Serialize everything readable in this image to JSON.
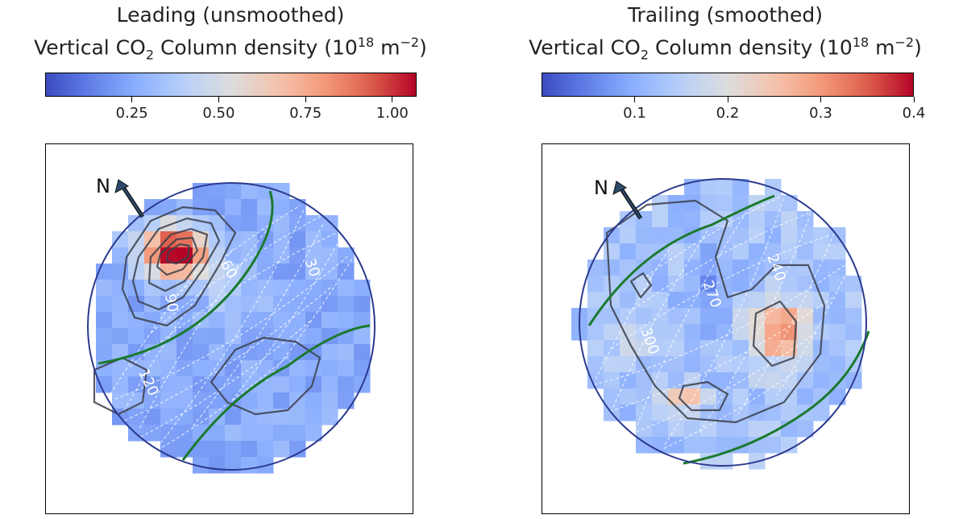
{
  "chart_data": [
    {
      "type": "heatmap",
      "title_line1": "Leading (unsmoothed)",
      "title_line2_pre": "Vertical CO",
      "title_line2_sub": "2",
      "title_line2_mid": " Column density (10",
      "title_line2_sup1": "18",
      "title_line2_unit": " m",
      "title_line2_sup2": "−2",
      "title_line2_end": ")",
      "colormap": "coolwarm",
      "colorbar_range": [
        0.0,
        1.07
      ],
      "colorbar_ticks": [
        0.25,
        0.5,
        0.75,
        1.0
      ],
      "colorbar_tick_labels": [
        "0.25",
        "0.50",
        "0.75",
        "1.00"
      ],
      "north_label": "N",
      "longitude_labels": [
        {
          "text": "30",
          "lon": 30
        },
        {
          "text": "60",
          "lon": 60
        },
        {
          "text": "90",
          "lon": 90
        },
        {
          "text": "120",
          "lon": 120
        }
      ],
      "contour_levels": [
        0.3,
        0.45,
        0.6,
        0.75,
        0.9
      ]
    },
    {
      "type": "heatmap",
      "title_line1": "Trailing (smoothed)",
      "title_line2_pre": "Vertical CO",
      "title_line2_sub": "2",
      "title_line2_mid": " Column density (10",
      "title_line2_sup1": "18",
      "title_line2_unit": " m",
      "title_line2_sup2": "−2",
      "title_line2_end": ")",
      "colormap": "coolwarm",
      "colorbar_range": [
        0.0,
        0.4
      ],
      "colorbar_ticks": [
        0.1,
        0.2,
        0.3,
        0.4
      ],
      "colorbar_tick_labels": [
        "0.1",
        "0.2",
        "0.3",
        "0.4"
      ],
      "north_label": "N",
      "longitude_labels": [
        {
          "text": "240",
          "lon": 240
        },
        {
          "text": "270",
          "lon": 270
        },
        {
          "text": "300",
          "lon": 300
        }
      ],
      "contour_levels": [
        0.13,
        0.2,
        0.25
      ]
    }
  ],
  "colors": {
    "cmap_low": "#3b4cc0",
    "cmap_mid": "#dddddd",
    "cmap_high": "#b40426",
    "limb": "#2b3a8f",
    "terminator": "#1a7a2e",
    "contour": "#3a3f4a",
    "arrow": "#2c4a6a"
  }
}
